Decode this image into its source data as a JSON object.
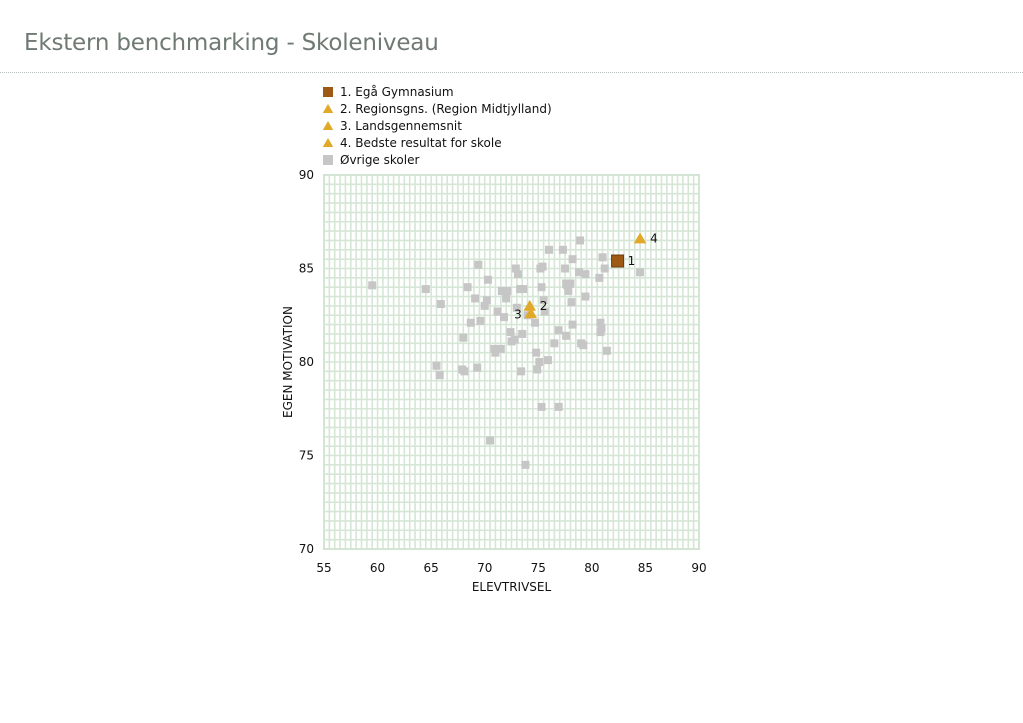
{
  "page": {
    "title": "Ekstern benchmarking - Skoleniveau"
  },
  "chart_data": {
    "type": "scatter",
    "title": "",
    "xlabel": "ELEVTRIVSEL",
    "ylabel": "EGEN MOTIVATION",
    "xlim": [
      55,
      90
    ],
    "ylim": [
      70,
      90
    ],
    "xticks": [
      55,
      60,
      65,
      70,
      75,
      80,
      85,
      90
    ],
    "yticks": [
      70,
      75,
      80,
      85,
      90
    ],
    "grid": true,
    "legend_position": "top",
    "legend": [
      {
        "label": "1. Egå Gymnasium",
        "marker": "square",
        "color": "#9c5a14"
      },
      {
        "label": "2. Regionsgns. (Region Midtjylland)",
        "marker": "triangle",
        "color": "#e0a92a"
      },
      {
        "label": "3. Landsgennemsnit",
        "marker": "triangle",
        "color": "#e0a92a"
      },
      {
        "label": "4. Bedste resultat for skole",
        "marker": "triangle",
        "color": "#e0a92a"
      },
      {
        "label": "Øvrige skoler",
        "marker": "square",
        "color": "#c6c6c6"
      }
    ],
    "highlight_points": [
      {
        "label": "1",
        "x": 82.4,
        "y": 85.4,
        "marker": "square",
        "color": "#9c5a14"
      },
      {
        "label": "2",
        "x": 74.2,
        "y": 83.0,
        "marker": "triangle",
        "color": "#e0a92a"
      },
      {
        "label": "3",
        "x": 74.3,
        "y": 82.6,
        "marker": "triangle",
        "color": "#e0a92a"
      },
      {
        "label": "4",
        "x": 84.5,
        "y": 86.6,
        "marker": "triangle",
        "color": "#e0a92a"
      }
    ],
    "series": [
      {
        "name": "Øvrige skoler",
        "color": "#c6c6c6",
        "points": [
          [
            59.5,
            84.1
          ],
          [
            64.5,
            83.9
          ],
          [
            65.5,
            79.8
          ],
          [
            65.8,
            79.3
          ],
          [
            65.9,
            83.1
          ],
          [
            68.0,
            81.3
          ],
          [
            67.9,
            79.6
          ],
          [
            68.1,
            79.5
          ],
          [
            68.4,
            84.0
          ],
          [
            68.7,
            82.1
          ],
          [
            69.1,
            83.4
          ],
          [
            69.3,
            79.7
          ],
          [
            69.4,
            85.2
          ],
          [
            69.6,
            82.2
          ],
          [
            70.0,
            83.0
          ],
          [
            70.3,
            84.4
          ],
          [
            70.2,
            83.3
          ],
          [
            70.5,
            75.8
          ],
          [
            70.9,
            80.7
          ],
          [
            71.0,
            80.5
          ],
          [
            71.2,
            82.7
          ],
          [
            71.5,
            80.7
          ],
          [
            71.6,
            83.8
          ],
          [
            71.8,
            82.4
          ],
          [
            72.0,
            83.4
          ],
          [
            72.1,
            83.8
          ],
          [
            72.4,
            81.6
          ],
          [
            72.5,
            81.1
          ],
          [
            72.9,
            85.0
          ],
          [
            73.1,
            84.7
          ],
          [
            73.0,
            82.9
          ],
          [
            72.8,
            81.2
          ],
          [
            73.3,
            83.9
          ],
          [
            73.4,
            79.5
          ],
          [
            73.6,
            83.9
          ],
          [
            73.5,
            81.5
          ],
          [
            73.8,
            74.5
          ],
          [
            74.0,
            82.5
          ],
          [
            74.7,
            82.1
          ],
          [
            74.8,
            80.5
          ],
          [
            74.9,
            79.6
          ],
          [
            75.1,
            80.0
          ],
          [
            75.2,
            85.0
          ],
          [
            75.4,
            85.1
          ],
          [
            75.3,
            84.0
          ],
          [
            75.5,
            83.3
          ],
          [
            75.6,
            82.7
          ],
          [
            75.3,
            77.6
          ],
          [
            76.0,
            86.0
          ],
          [
            75.9,
            80.1
          ],
          [
            76.5,
            81.0
          ],
          [
            76.9,
            81.7
          ],
          [
            76.9,
            77.6
          ],
          [
            77.3,
            86.0
          ],
          [
            77.5,
            85.0
          ],
          [
            77.6,
            84.2
          ],
          [
            77.7,
            84.1
          ],
          [
            77.8,
            83.8
          ],
          [
            77.6,
            81.4
          ],
          [
            78.0,
            84.2
          ],
          [
            78.1,
            83.2
          ],
          [
            78.2,
            82.0
          ],
          [
            78.2,
            85.5
          ],
          [
            78.8,
            84.8
          ],
          [
            78.9,
            86.5
          ],
          [
            79.0,
            81.0
          ],
          [
            79.2,
            80.9
          ],
          [
            79.4,
            84.7
          ],
          [
            79.4,
            83.5
          ],
          [
            80.7,
            84.5
          ],
          [
            80.8,
            82.1
          ],
          [
            80.9,
            81.8
          ],
          [
            80.8,
            81.6
          ],
          [
            81.0,
            85.6
          ],
          [
            81.2,
            85.0
          ],
          [
            81.4,
            80.6
          ],
          [
            84.5,
            84.8
          ]
        ]
      }
    ]
  }
}
